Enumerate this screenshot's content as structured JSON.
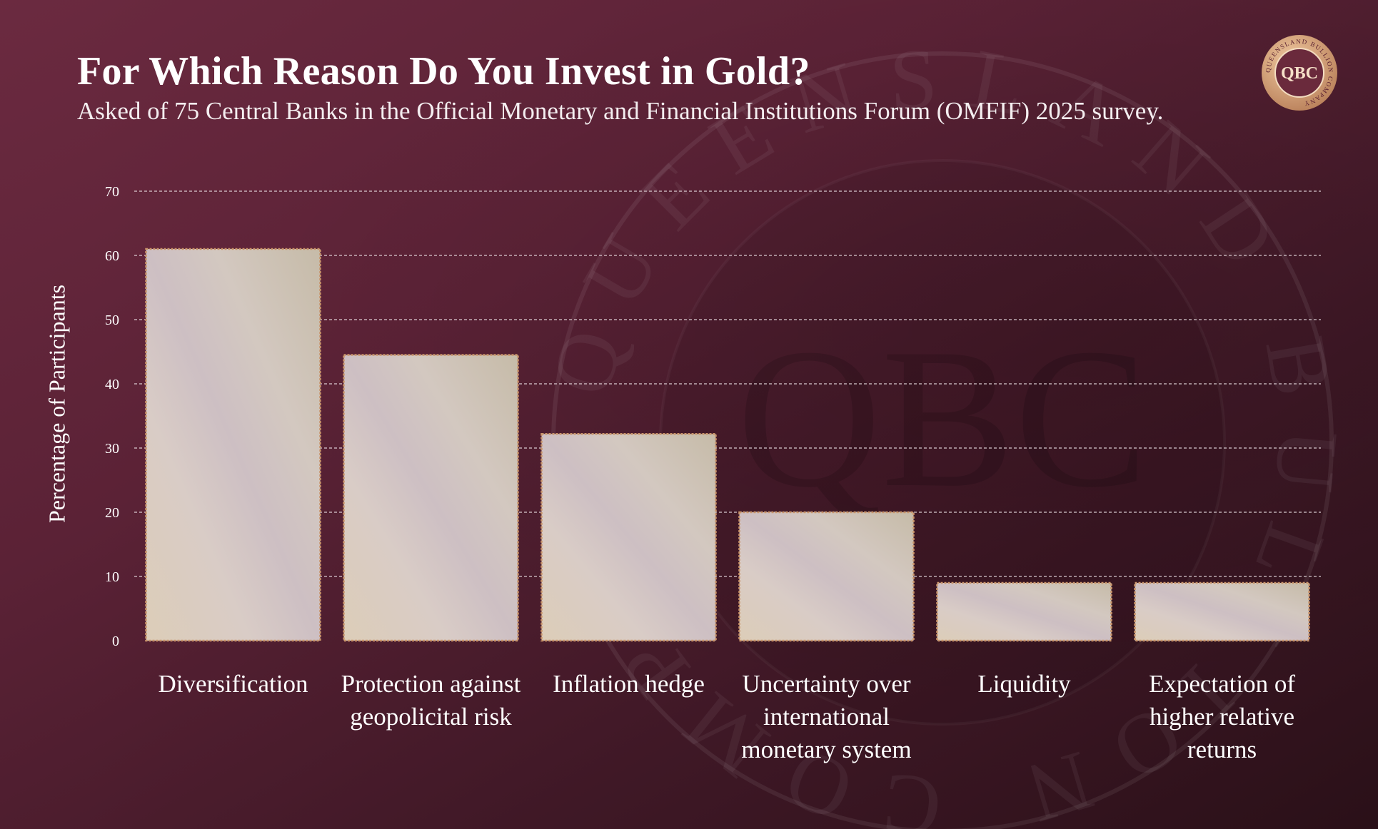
{
  "title": "For Which Reason Do You Invest in Gold?",
  "subtitle": "Asked of 75 Central Banks in the Official Monetary and Financial Institutions Forum (OMFIF) 2025 survey.",
  "logo": {
    "monogram": "QBC",
    "ring_text": "QUEENSLAND BULLION COMPANY"
  },
  "watermark": {
    "monogram": "QBC",
    "ring_text": "QUEENSLAND BULLION COMPANY"
  },
  "colors": {
    "background": "#5b2236",
    "bar_fill_light": "#d8cfd4",
    "bar_fill_warm": "#d6c8b4",
    "bar_border": "#c9946a",
    "logo_gold": "#d6a878",
    "grid": "#e8dde2"
  },
  "chart_data": {
    "type": "bar",
    "title": "For Which Reason Do You Invest in Gold?",
    "subtitle": "Asked of 75 Central Banks in the Official Monetary and Financial Institutions Forum (OMFIF) 2025 survey.",
    "xlabel": "",
    "ylabel": "Percentage of Participants",
    "categories": [
      "Diversification",
      "Protection against geopolicital risk",
      "Inflation hedge",
      "Uncertainty over international monetary system",
      "Liquidity",
      "Expectation of higher relative returns"
    ],
    "category_lines": [
      [
        "Diversification"
      ],
      [
        "Protection against",
        "geopolicital risk"
      ],
      [
        "Inflation hedge"
      ],
      [
        "Uncertainty over",
        "international",
        "monetary system"
      ],
      [
        "Liquidity"
      ],
      [
        "Expectation of",
        "higher relative",
        "returns"
      ]
    ],
    "values": [
      61,
      44.5,
      32.2,
      20,
      9,
      9
    ],
    "ylim": [
      0,
      70
    ],
    "yticks": [
      "0",
      "10",
      "20",
      "30",
      "40",
      "50",
      "60",
      "70"
    ],
    "grid": true,
    "legend": "none"
  }
}
